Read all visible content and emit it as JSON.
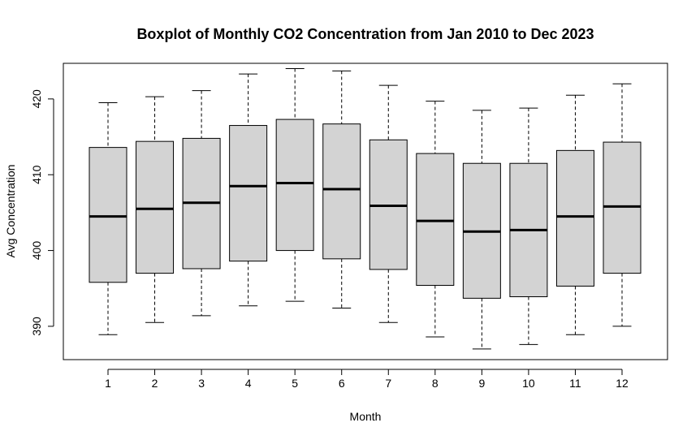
{
  "chart_data": {
    "type": "boxplot",
    "title": "Boxplot of Monthly CO2 Concentration from Jan 2010 to Dec 2023",
    "xlabel": "Month",
    "ylabel": "Avg Concentration",
    "categories": [
      "1",
      "2",
      "3",
      "4",
      "5",
      "6",
      "7",
      "8",
      "9",
      "10",
      "11",
      "12"
    ],
    "yticks": [
      390,
      400,
      410,
      420
    ],
    "ylim": [
      385.6,
      424.7
    ],
    "box_fill": "#d3d3d3",
    "boxes": [
      {
        "min": 388.9,
        "q1": 395.8,
        "median": 404.5,
        "q3": 413.6,
        "max": 419.5
      },
      {
        "min": 390.5,
        "q1": 397.0,
        "median": 405.5,
        "q3": 414.4,
        "max": 420.3
      },
      {
        "min": 391.4,
        "q1": 397.6,
        "median": 406.3,
        "q3": 414.8,
        "max": 421.1
      },
      {
        "min": 392.7,
        "q1": 398.6,
        "median": 408.5,
        "q3": 416.5,
        "max": 423.3
      },
      {
        "min": 393.3,
        "q1": 400.0,
        "median": 408.9,
        "q3": 417.3,
        "max": 424.0
      },
      {
        "min": 392.4,
        "q1": 398.9,
        "median": 408.1,
        "q3": 416.7,
        "max": 423.7
      },
      {
        "min": 390.5,
        "q1": 397.5,
        "median": 405.9,
        "q3": 414.6,
        "max": 421.8
      },
      {
        "min": 388.6,
        "q1": 395.4,
        "median": 403.9,
        "q3": 412.8,
        "max": 419.7
      },
      {
        "min": 387.0,
        "q1": 393.7,
        "median": 402.5,
        "q3": 411.5,
        "max": 418.5
      },
      {
        "min": 387.6,
        "q1": 393.9,
        "median": 402.7,
        "q3": 411.5,
        "max": 418.8
      },
      {
        "min": 388.9,
        "q1": 395.3,
        "median": 404.5,
        "q3": 413.2,
        "max": 420.5
      },
      {
        "min": 390.0,
        "q1": 397.0,
        "median": 405.8,
        "q3": 414.3,
        "max": 422.0
      }
    ]
  }
}
